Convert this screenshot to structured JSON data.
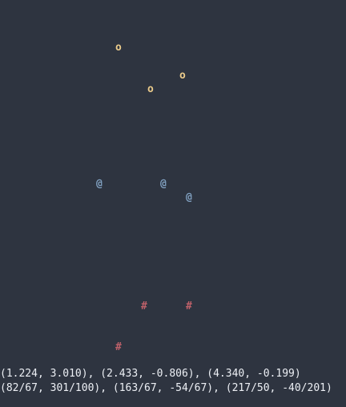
{
  "terminal": {
    "background": "#2e3440",
    "foreground": "#eceff4"
  },
  "clusters": [
    {
      "glyph": "o",
      "color": "#ebcb8b",
      "points": 3
    },
    {
      "glyph": "@",
      "color": "#81a1c1",
      "points": 3
    },
    {
      "glyph": "#",
      "color": "#bf616a",
      "points": 3
    }
  ],
  "status": {
    "decimal_line": "(1.224, 3.010), (2.433, -0.806), (4.340, -0.199)",
    "fraction_line": "(82/67, 301/100), (163/67, -54/67), (217/50, -40/201)"
  }
}
